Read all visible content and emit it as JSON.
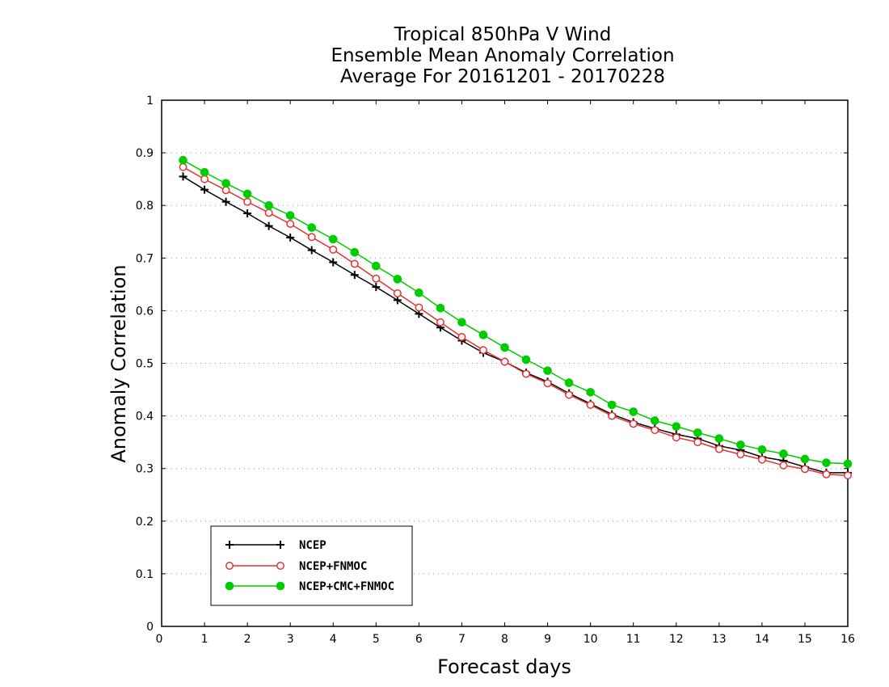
{
  "chart_data": {
    "type": "line",
    "title_lines": [
      "Tropical 850hPa V Wind",
      "Ensemble Mean Anomaly Correlation",
      "Average For 20161201 - 20170228"
    ],
    "xlabel": "Forecast days",
    "ylabel": "Anomaly Correlation",
    "xlim": [
      0,
      16
    ],
    "ylim": [
      0,
      1
    ],
    "xticks": [
      "0",
      "1",
      "2",
      "3",
      "4",
      "5",
      "6",
      "7",
      "8",
      "9",
      "10",
      "11",
      "12",
      "13",
      "14",
      "15",
      "16"
    ],
    "yticks": [
      "0",
      "0.1",
      "0.2",
      "0.3",
      "0.4",
      "0.5",
      "0.6",
      "0.7",
      "0.8",
      "0.9",
      "1"
    ],
    "grid": true,
    "legend_position": "bottom-left",
    "x": [
      0.5,
      1,
      1.5,
      2,
      2.5,
      3,
      3.5,
      4,
      4.5,
      5,
      5.5,
      6,
      6.5,
      7,
      7.5,
      8,
      8.5,
      9,
      9.5,
      10,
      10.5,
      11,
      11.5,
      12,
      12.5,
      13,
      13.5,
      14,
      14.5,
      15,
      15.5,
      16
    ],
    "series": [
      {
        "name": "NCEP",
        "color": "#000000",
        "marker": "plus",
        "values": [
          0.855,
          0.83,
          0.807,
          0.785,
          0.761,
          0.739,
          0.715,
          0.692,
          0.668,
          0.645,
          0.62,
          0.594,
          0.568,
          0.543,
          0.52,
          0.503,
          0.482,
          0.465,
          0.443,
          0.423,
          0.403,
          0.388,
          0.376,
          0.365,
          0.357,
          0.343,
          0.335,
          0.322,
          0.315,
          0.303,
          0.292,
          0.292
        ]
      },
      {
        "name": "NCEP+FNMOC",
        "color": "#e83030",
        "marker": "open-circle",
        "values": [
          0.873,
          0.85,
          0.829,
          0.807,
          0.786,
          0.765,
          0.74,
          0.716,
          0.689,
          0.661,
          0.633,
          0.606,
          0.578,
          0.55,
          0.525,
          0.503,
          0.48,
          0.462,
          0.44,
          0.421,
          0.4,
          0.385,
          0.373,
          0.359,
          0.35,
          0.337,
          0.327,
          0.317,
          0.306,
          0.299,
          0.289,
          0.287
        ]
      },
      {
        "name": "NCEP+CMC+FNMOC",
        "color": "#00cc00",
        "marker": "filled-circle",
        "values": [
          0.886,
          0.863,
          0.842,
          0.822,
          0.8,
          0.781,
          0.758,
          0.736,
          0.711,
          0.685,
          0.66,
          0.634,
          0.605,
          0.578,
          0.554,
          0.53,
          0.507,
          0.486,
          0.463,
          0.445,
          0.421,
          0.408,
          0.391,
          0.38,
          0.368,
          0.357,
          0.345,
          0.336,
          0.328,
          0.318,
          0.311,
          0.309
        ]
      }
    ]
  }
}
